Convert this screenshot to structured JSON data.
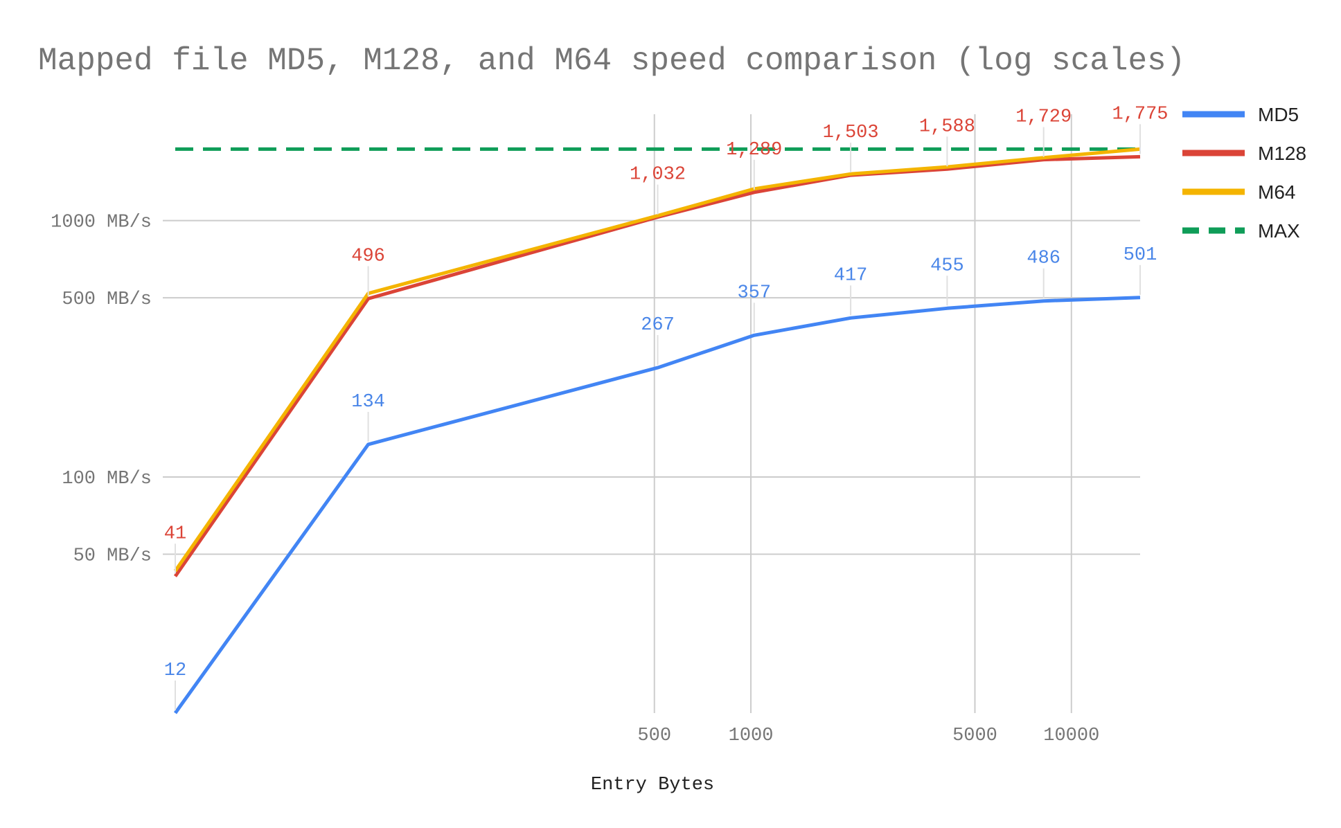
{
  "chart_data": {
    "type": "line",
    "title": "Mapped file MD5, M128, and M64 speed comparison (log scales)",
    "xlabel": "Entry Bytes",
    "ylabel": "",
    "x_scale": "log",
    "y_scale": "log",
    "x": [
      16,
      64,
      512,
      1024,
      2048,
      4096,
      8192,
      16384
    ],
    "xlim": [
      16,
      16384
    ],
    "ylim": [
      12,
      2600
    ],
    "x_ticks": [
      500,
      1000,
      5000,
      10000
    ],
    "x_tick_labels": [
      "500",
      "1000",
      "5000",
      "10000"
    ],
    "y_ticks": [
      50,
      100,
      500,
      1000
    ],
    "y_tick_labels": [
      "50 MB/s",
      "100 MB/s",
      "500 MB/s",
      "1000 MB/s"
    ],
    "grid": true,
    "legend_position": "right",
    "series": [
      {
        "name": "MD5",
        "color": "#4285f4",
        "dashed": false,
        "values": [
          12,
          134,
          267,
          357,
          417,
          455,
          486,
          501
        ],
        "labels": [
          "12",
          "134",
          "267",
          "357",
          "417",
          "455",
          "486",
          "501"
        ],
        "label_color": "#4a86e8"
      },
      {
        "name": "M128",
        "color": "#db4437",
        "dashed": false,
        "values": [
          41,
          496,
          1032,
          1289,
          1503,
          1588,
          1729,
          1775
        ],
        "labels": [
          "41",
          "496",
          "1,032",
          "1,289",
          "1,503",
          "1,588",
          "1,729",
          "1,775"
        ],
        "label_color": "#db4437"
      },
      {
        "name": "M64",
        "color": "#f4b400",
        "dashed": false,
        "values": [
          43,
          520,
          1045,
          1330,
          1520,
          1620,
          1760,
          1900
        ],
        "labels": [],
        "label_color": "#f4b400"
      },
      {
        "name": "MAX",
        "color": "#0f9d58",
        "dashed": true,
        "values": [
          1900,
          1900,
          1900,
          1900,
          1900,
          1900,
          1900,
          1900
        ],
        "labels": [],
        "label_color": "#0f9d58"
      }
    ]
  }
}
